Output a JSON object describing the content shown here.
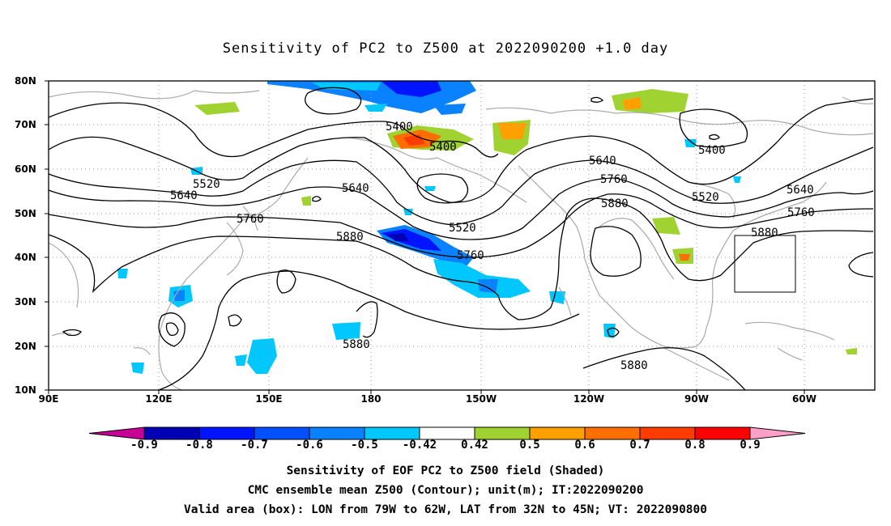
{
  "title": "Sensitivity of PC2 to Z500 at 2022090200 +1.0 day",
  "lat_labels": [
    "80N",
    "70N",
    "60N",
    "50N",
    "40N",
    "30N",
    "20N",
    "10N"
  ],
  "lon_labels": [
    "90E",
    "120E",
    "150E",
    "180",
    "150W",
    "120W",
    "90W",
    "60W"
  ],
  "colorbar": {
    "labels": [
      "-0.9",
      "-0.8",
      "-0.7",
      "-0.6",
      "-0.5",
      "-0.42",
      "0.42",
      "0.5",
      "0.6",
      "0.7",
      "0.8",
      "0.9"
    ],
    "colors": [
      "#0000b4",
      "#0014ff",
      "#0050ff",
      "#0a82ff",
      "#00c8ff",
      "#ffffff",
      "#a0d232",
      "#ffa000",
      "#ff6e00",
      "#ff3c00",
      "#ff0000"
    ],
    "low_extend_color": "#c80096",
    "high_extend_color": "#ffa0c8"
  },
  "contour_labels": [
    "5400",
    "5400",
    "5400",
    "5520",
    "5520",
    "5520",
    "5640",
    "5640",
    "5640",
    "5640",
    "5760",
    "5760",
    "5760",
    "5760",
    "5880",
    "5880",
    "5880",
    "5880",
    "5880"
  ],
  "caption": {
    "line1": "Sensitivity of EOF PC2 to Z500 field (Shaded)",
    "line2": "CMC ensemble mean Z500 (Contour); unit(m); IT:2022090200",
    "line3": "Valid area (box): LON from 79W to 62W, LAT from 32N to 45N; VT: 2022090800"
  },
  "valid_area": {
    "lon_range": [
      "79W",
      "62W"
    ],
    "lat_range": [
      "32N",
      "45N"
    ]
  },
  "colors": {
    "coast": "#aaaaaa",
    "grid": "#999999",
    "contour": "#000000"
  }
}
